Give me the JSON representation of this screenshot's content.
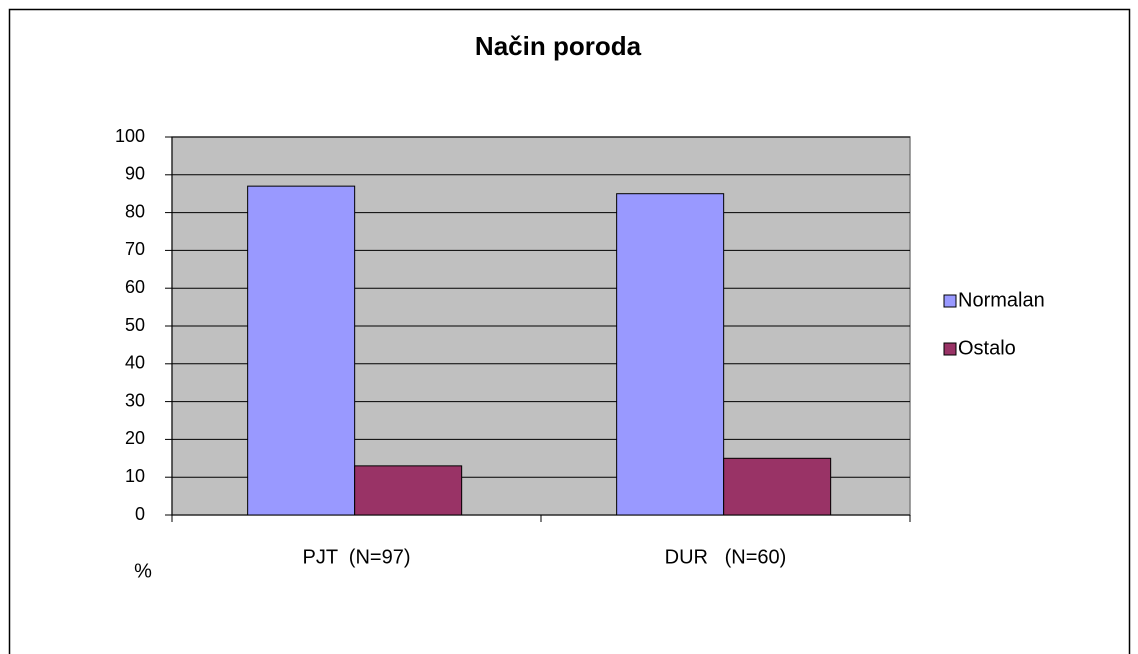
{
  "chart_data": {
    "type": "bar",
    "title": "Način poroda",
    "y_label": "%",
    "categories": [
      "PJT  (N=97)",
      "DUR   (N=60)"
    ],
    "series": [
      {
        "name": "Normalan",
        "color": "#9999ff",
        "values": [
          87,
          85
        ]
      },
      {
        "name": "Ostalo",
        "color": "#993366",
        "values": [
          13,
          15
        ]
      }
    ],
    "ylim": [
      0,
      100
    ],
    "yticks": [
      0,
      10,
      20,
      30,
      40,
      50,
      60,
      70,
      80,
      90,
      100
    ],
    "grid": true,
    "legend": "right"
  }
}
